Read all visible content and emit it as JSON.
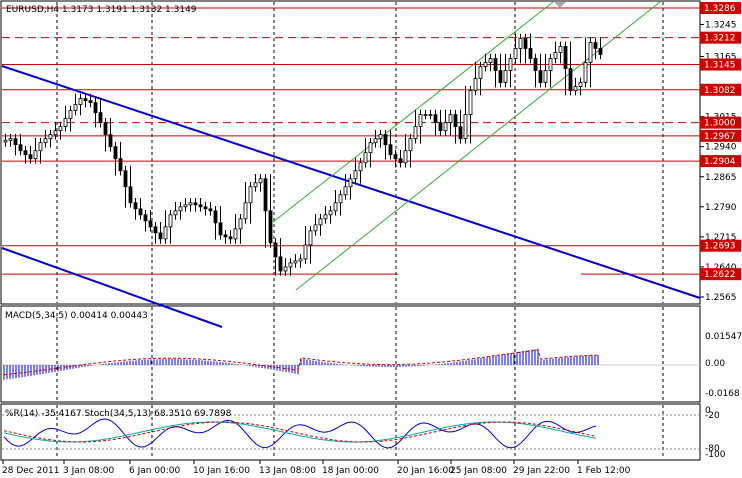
{
  "main": {
    "header": "EURUSD,H4  1.3173 1.3191 1.3132 1.3149",
    "scale_labels": [
      "1.3245",
      "1.3165",
      "1.3015",
      "1.2940",
      "1.2865",
      "1.2790",
      "1.2715",
      "1.2640",
      "1.2565"
    ],
    "levels": [
      {
        "value": "1.3286",
        "style": "solid"
      },
      {
        "value": "1.3212",
        "style": "dashed"
      },
      {
        "value": "1.3145",
        "style": "solid"
      },
      {
        "value": "1.3082",
        "style": "solid"
      },
      {
        "value": "1.3000",
        "style": "dashed"
      },
      {
        "value": "1.2967",
        "style": "solid"
      },
      {
        "value": "1.2904",
        "style": "solid"
      },
      {
        "value": "1.2693",
        "style": "solid"
      },
      {
        "value": "1.2622",
        "style": "solid"
      }
    ],
    "colors": {
      "level_line": "#cc0000",
      "label_box": "#cc0000",
      "trend_down": "#0000cc",
      "channel_up": "#33aa33",
      "candle": "#000000"
    }
  },
  "macd": {
    "header": "MACD(5,34,5)  0.00414  0.00443",
    "scale_labels": [
      "0.01547",
      "0.00",
      "-0.0168"
    ],
    "colors": {
      "hist": "#0000cc",
      "signal": "#cc0000"
    }
  },
  "stoch": {
    "header": "%R(14) -35.4167   Stoch(34,5,13) 68.3510 69.7898",
    "scale_labels": [
      "0",
      "-20",
      "-80",
      "-100"
    ],
    "colors": {
      "wpr": "#0000cc",
      "main": "#00aaaa",
      "signal": "#cc0000"
    }
  },
  "time_axis": [
    "28 Dec 2011",
    "3 Jan 08:00",
    "6 Jan 00:00",
    "10 Jan 16:00",
    "13 Jan 08:00",
    "18 Jan 00:00",
    "20 Jan 16:00",
    "25 Jan 08:00",
    "29 Jan 22:00",
    "1 Feb 12:00"
  ]
}
